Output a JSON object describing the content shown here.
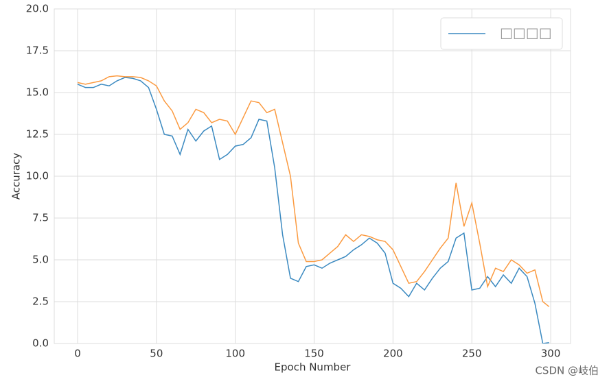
{
  "chart_data": {
    "type": "line",
    "x_label": "Epoch Number",
    "y_label": "Accuracy",
    "x": [
      0,
      5,
      10,
      15,
      20,
      25,
      30,
      35,
      40,
      45,
      50,
      55,
      60,
      65,
      70,
      75,
      80,
      85,
      90,
      95,
      100,
      105,
      110,
      115,
      120,
      125,
      130,
      135,
      140,
      145,
      150,
      155,
      160,
      165,
      170,
      175,
      180,
      185,
      190,
      195,
      200,
      205,
      210,
      215,
      220,
      225,
      230,
      235,
      240,
      245,
      250,
      255,
      260,
      265,
      270,
      275,
      280,
      285,
      290,
      295,
      299
    ],
    "series": [
      {
        "name": "□□□□",
        "color": "#3a89c0",
        "values": [
          15.5,
          15.3,
          15.3,
          15.5,
          15.4,
          15.7,
          15.9,
          15.85,
          15.7,
          15.3,
          14.0,
          12.5,
          12.4,
          11.3,
          12.8,
          12.1,
          12.7,
          13.0,
          11.0,
          11.3,
          11.8,
          11.9,
          12.3,
          13.4,
          13.3,
          10.5,
          6.5,
          3.9,
          3.7,
          4.6,
          4.7,
          4.5,
          4.8,
          5.0,
          5.2,
          5.6,
          5.9,
          6.3,
          6.0,
          5.4,
          3.6,
          3.3,
          2.8,
          3.6,
          3.2,
          3.9,
          4.5,
          4.9,
          6.3,
          6.6,
          3.2,
          3.3,
          4.0,
          3.4,
          4.1,
          3.6,
          4.5,
          4.0,
          2.4,
          0.0,
          0.05
        ]
      },
      {
        "color": "#fb9a40",
        "values": [
          15.6,
          15.5,
          15.6,
          15.7,
          15.95,
          16.0,
          15.95,
          15.95,
          15.9,
          15.7,
          15.4,
          14.5,
          13.9,
          12.8,
          13.2,
          14.0,
          13.8,
          13.2,
          13.4,
          13.3,
          12.5,
          13.5,
          14.5,
          14.4,
          13.8,
          14.0,
          12.0,
          10.0,
          6.0,
          4.9,
          4.9,
          5.0,
          5.4,
          5.8,
          6.5,
          6.1,
          6.5,
          6.4,
          6.2,
          6.1,
          5.6,
          4.6,
          3.6,
          3.7,
          4.3,
          5.0,
          5.7,
          6.3,
          9.6,
          7.0,
          8.4,
          6.0,
          3.4,
          4.5,
          4.3,
          5.0,
          4.7,
          4.2,
          4.4,
          2.5,
          2.2
        ]
      }
    ],
    "xlim": [
      -14.8,
      312.6
    ],
    "ylim": [
      0,
      20
    ],
    "xticks": [
      0,
      50,
      100,
      150,
      200,
      250,
      300
    ],
    "yticks": [
      {
        "value": 0,
        "label": "0.0"
      },
      2.5,
      {
        "value": 5,
        "label": "5.0"
      },
      7.5,
      {
        "value": 10,
        "label": "10.0"
      },
      12.5,
      {
        "value": 15,
        "label": "15.0"
      },
      17.5,
      {
        "value": 20,
        "label": "20.0"
      }
    ],
    "grid": true,
    "legend": "upper right",
    "watermark": "CSDN @岐伯"
  }
}
